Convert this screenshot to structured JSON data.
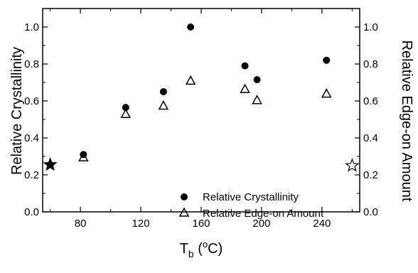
{
  "chart_data": {
    "type": "scatter",
    "xlabel": {
      "main": "T",
      "sub": "b",
      "unit_open": " (",
      "unit_sup": "o",
      "unit_close": "C)"
    },
    "ylabel_left": "Relative Crystallinity",
    "ylabel_right": "Relative Edge-on Amount",
    "xlim": [
      55,
      265
    ],
    "ylim": [
      0,
      1.1
    ],
    "x_ticks": [
      "80",
      "120",
      "160",
      "200",
      "240"
    ],
    "x_tick_values": [
      80,
      120,
      160,
      200,
      240
    ],
    "y_ticks": [
      "0.0",
      "0.2",
      "0.4",
      "0.6",
      "0.8",
      "1.0"
    ],
    "y_tick_values": [
      0,
      0.2,
      0.4,
      0.6,
      0.8,
      1.0
    ],
    "legend_position": "bottom-right",
    "series": [
      {
        "name": "Relative Crystallinity",
        "marker": "filled-circle",
        "x": [
          82,
          110,
          135,
          153,
          189,
          197,
          243
        ],
        "y": [
          0.31,
          0.565,
          0.65,
          1.0,
          0.79,
          0.715,
          0.82
        ]
      },
      {
        "name": "Relative Edge-on Amount",
        "marker": "open-triangle",
        "x": [
          82,
          110,
          135,
          153,
          189,
          197,
          243
        ],
        "y": [
          0.295,
          0.53,
          0.575,
          0.71,
          0.665,
          0.605,
          0.64
        ]
      }
    ],
    "reference_markers": [
      {
        "marker": "filled-star",
        "axis": "left",
        "x": 60,
        "y": 0.255
      },
      {
        "marker": "open-star",
        "axis": "right",
        "x": 260,
        "y": 0.25
      }
    ]
  }
}
